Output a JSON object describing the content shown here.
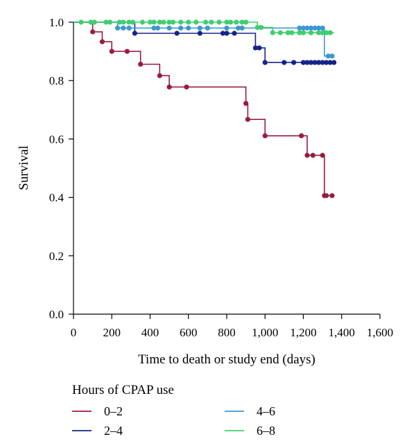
{
  "chart_data": {
    "type": "line",
    "subtype": "kaplan-meier-step",
    "xlabel": "Time to death or study end (days)",
    "ylabel": "Survival",
    "xlim": [
      0,
      1600
    ],
    "ylim": [
      0.0,
      1.0
    ],
    "xticks": [
      0,
      200,
      400,
      600,
      800,
      1000,
      1200,
      1400,
      1600
    ],
    "xtick_labels": [
      "0",
      "200",
      "400",
      "600",
      "800",
      "1,000",
      "1,200",
      "1,400",
      "1,600"
    ],
    "yticks": [
      0.0,
      0.2,
      0.4,
      0.6,
      0.8,
      1.0
    ],
    "ytick_labels": [
      "0.0",
      "0.2",
      "0.4",
      "0.6",
      "0.8",
      "1.0"
    ],
    "grid": false,
    "legend": {
      "title": "Hours of CPAP use",
      "placement": "bottom"
    },
    "series": [
      {
        "name": "0–2",
        "color": "#9b1b3f",
        "steps": [
          [
            0,
            1.0
          ],
          [
            100,
            0.967
          ],
          [
            150,
            0.933
          ],
          [
            200,
            0.9
          ],
          [
            350,
            0.856
          ],
          [
            450,
            0.817
          ],
          [
            500,
            0.778
          ],
          [
            900,
            0.722
          ],
          [
            910,
            0.667
          ],
          [
            1000,
            0.611
          ],
          [
            1220,
            0.544
          ],
          [
            1310,
            0.406
          ]
        ],
        "end_x": 1360,
        "censored": [
          [
            100,
            0.967
          ],
          [
            150,
            0.933
          ],
          [
            200,
            0.9
          ],
          [
            280,
            0.9
          ],
          [
            350,
            0.856
          ],
          [
            450,
            0.817
          ],
          [
            500,
            0.778
          ],
          [
            590,
            0.778
          ],
          [
            900,
            0.722
          ],
          [
            910,
            0.667
          ],
          [
            1000,
            0.611
          ],
          [
            1190,
            0.611
          ],
          [
            1220,
            0.544
          ],
          [
            1250,
            0.544
          ],
          [
            1300,
            0.544
          ],
          [
            1310,
            0.406
          ],
          [
            1320,
            0.406
          ],
          [
            1350,
            0.406
          ]
        ]
      },
      {
        "name": "2–4",
        "color": "#16238a",
        "steps": [
          [
            0,
            1.0
          ],
          [
            320,
            0.962
          ],
          [
            950,
            0.912
          ],
          [
            1000,
            0.862
          ]
        ],
        "end_x": 1360,
        "censored": [
          [
            320,
            0.962
          ],
          [
            540,
            0.962
          ],
          [
            660,
            0.962
          ],
          [
            780,
            0.962
          ],
          [
            800,
            0.962
          ],
          [
            840,
            0.962
          ],
          [
            950,
            0.912
          ],
          [
            970,
            0.912
          ],
          [
            1000,
            0.862
          ],
          [
            1100,
            0.862
          ],
          [
            1150,
            0.862
          ],
          [
            1200,
            0.862
          ],
          [
            1220,
            0.862
          ],
          [
            1240,
            0.862
          ],
          [
            1260,
            0.862
          ],
          [
            1280,
            0.862
          ],
          [
            1300,
            0.862
          ],
          [
            1320,
            0.862
          ],
          [
            1340,
            0.862
          ],
          [
            1360,
            0.862
          ]
        ]
      },
      {
        "name": "4–6",
        "color": "#3f97cf",
        "steps": [
          [
            0,
            1.0
          ],
          [
            230,
            0.98
          ],
          [
            1310,
            0.884
          ]
        ],
        "end_x": 1360,
        "censored": [
          [
            230,
            0.98
          ],
          [
            260,
            0.98
          ],
          [
            290,
            0.98
          ],
          [
            420,
            0.98
          ],
          [
            440,
            0.98
          ],
          [
            500,
            0.98
          ],
          [
            560,
            0.98
          ],
          [
            600,
            0.98
          ],
          [
            660,
            0.98
          ],
          [
            700,
            0.98
          ],
          [
            800,
            0.98
          ],
          [
            860,
            0.98
          ],
          [
            880,
            0.98
          ],
          [
            1180,
            0.98
          ],
          [
            1200,
            0.98
          ],
          [
            1220,
            0.98
          ],
          [
            1240,
            0.98
          ],
          [
            1260,
            0.98
          ],
          [
            1280,
            0.98
          ],
          [
            1300,
            0.98
          ],
          [
            1330,
            0.884
          ],
          [
            1350,
            0.884
          ]
        ]
      },
      {
        "name": "6–8",
        "color": "#3ecf6e",
        "steps": [
          [
            0,
            1.0
          ],
          [
            960,
            0.982
          ],
          [
            1040,
            0.964
          ]
        ],
        "end_x": 1360,
        "censored": [
          [
            40,
            1.0
          ],
          [
            90,
            1.0
          ],
          [
            110,
            1.0
          ],
          [
            170,
            1.0
          ],
          [
            190,
            1.0
          ],
          [
            240,
            1.0
          ],
          [
            260,
            1.0
          ],
          [
            290,
            1.0
          ],
          [
            310,
            1.0
          ],
          [
            360,
            1.0
          ],
          [
            400,
            1.0
          ],
          [
            420,
            1.0
          ],
          [
            450,
            1.0
          ],
          [
            470,
            1.0
          ],
          [
            500,
            1.0
          ],
          [
            520,
            1.0
          ],
          [
            560,
            1.0
          ],
          [
            600,
            1.0
          ],
          [
            640,
            1.0
          ],
          [
            690,
            1.0
          ],
          [
            720,
            1.0
          ],
          [
            760,
            1.0
          ],
          [
            800,
            1.0
          ],
          [
            820,
            1.0
          ],
          [
            850,
            1.0
          ],
          [
            880,
            1.0
          ],
          [
            900,
            1.0
          ],
          [
            960,
            0.982
          ],
          [
            980,
            0.982
          ],
          [
            1040,
            0.964
          ],
          [
            1080,
            0.964
          ],
          [
            1120,
            0.964
          ],
          [
            1140,
            0.964
          ],
          [
            1180,
            0.964
          ],
          [
            1200,
            0.964
          ],
          [
            1240,
            0.964
          ],
          [
            1280,
            0.964
          ],
          [
            1300,
            0.964
          ],
          [
            1320,
            0.964
          ],
          [
            1340,
            0.964
          ]
        ]
      }
    ]
  }
}
